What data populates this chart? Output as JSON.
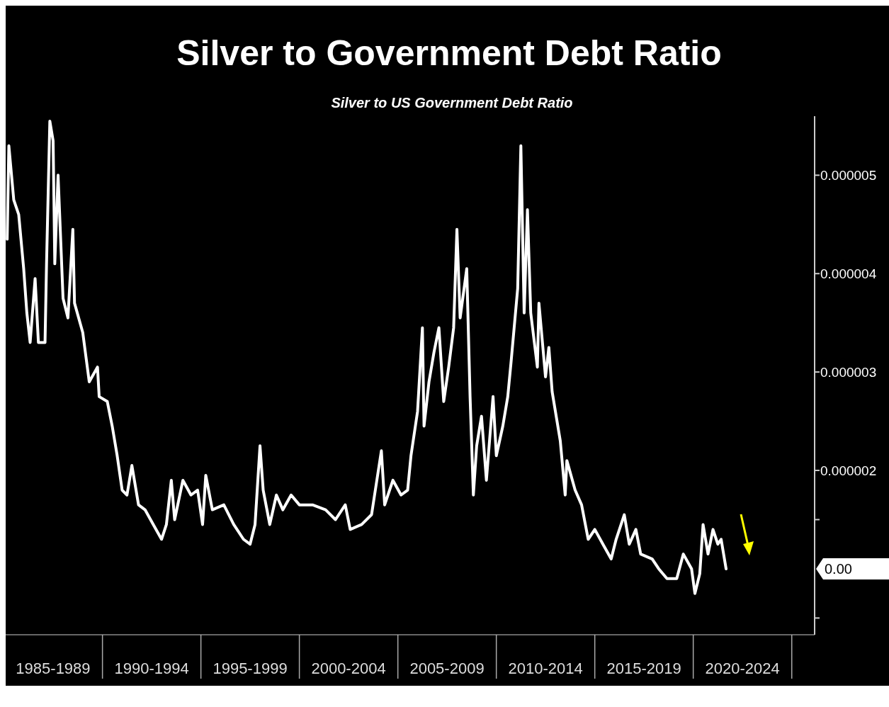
{
  "chart_data": {
    "type": "line",
    "title": "Silver to Government Debt Ratio",
    "subtitle": "Silver to US Government Debt Ratio",
    "x": [
      "1985-03",
      "1985-04",
      "1985-07",
      "1985-10",
      "1986-01",
      "1986-03",
      "1986-05",
      "1986-08",
      "1986-10",
      "1987-02",
      "1987-03",
      "1987-05",
      "1987-07",
      "1987-08",
      "1987-10",
      "1988-01",
      "1988-04",
      "1988-07",
      "1988-08",
      "1989-01",
      "1989-05",
      "1989-10",
      "1989-11",
      "1990-04",
      "1990-07",
      "1990-10",
      "1991-01",
      "1991-04",
      "1991-07",
      "1991-11",
      "1992-03",
      "1992-08",
      "1993-01",
      "1993-04",
      "1993-07",
      "1993-09",
      "1994-02",
      "1994-07",
      "1994-11",
      "1995-02",
      "1995-04",
      "1995-08",
      "1996-03",
      "1996-09",
      "1997-03",
      "1997-07",
      "1997-10",
      "1998-01",
      "1998-03",
      "1998-07",
      "1998-11",
      "1999-03",
      "1999-08",
      "2000-01",
      "2000-09",
      "2001-05",
      "2001-11",
      "2002-05",
      "2002-08",
      "2003-03",
      "2003-09",
      "2004-03",
      "2004-05",
      "2004-10",
      "2005-03",
      "2005-07",
      "2005-09",
      "2006-01",
      "2006-04",
      "2006-05",
      "2006-08",
      "2006-11",
      "2007-02",
      "2007-05",
      "2007-08",
      "2007-11",
      "2008-01",
      "2008-03",
      "2008-07",
      "2008-09",
      "2008-11",
      "2009-01",
      "2009-04",
      "2009-07",
      "2009-11",
      "2010-01",
      "2010-05",
      "2010-08",
      "2010-10",
      "2011-02",
      "2011-04",
      "2011-06",
      "2011-08",
      "2011-10",
      "2012-02",
      "2012-03",
      "2012-07",
      "2012-09",
      "2012-11",
      "2013-04",
      "2013-07",
      "2013-08",
      "2014-01",
      "2014-05",
      "2014-09",
      "2015-01",
      "2015-06",
      "2015-11",
      "2016-02",
      "2016-07",
      "2016-10",
      "2017-02",
      "2017-05",
      "2017-12",
      "2018-04",
      "2018-09",
      "2019-03",
      "2019-07",
      "2019-12",
      "2020-02",
      "2020-05",
      "2020-07",
      "2020-10",
      "2021-01",
      "2021-04",
      "2021-06",
      "2021-09"
    ],
    "series": [
      {
        "color": "#ffffff",
        "values": [
          4.35e-06,
          5.3e-06,
          4.75e-06,
          4.6e-06,
          4.05e-06,
          3.6e-06,
          3.3e-06,
          3.95e-06,
          3.3e-06,
          3.3e-06,
          4.1e-06,
          5.55e-06,
          5.35e-06,
          4.1e-06,
          5e-06,
          3.75e-06,
          3.55e-06,
          4.45e-06,
          3.7e-06,
          3.4e-06,
          2.9e-06,
          3.05e-06,
          2.75e-06,
          2.7e-06,
          2.45e-06,
          2.15e-06,
          1.8e-06,
          1.75e-06,
          2.05e-06,
          1.65e-06,
          1.6e-06,
          1.45e-06,
          1.3e-06,
          1.45e-06,
          1.9e-06,
          1.5e-06,
          1.9e-06,
          1.75e-06,
          1.8e-06,
          1.45e-06,
          1.95e-06,
          1.6e-06,
          1.65e-06,
          1.45e-06,
          1.3e-06,
          1.25e-06,
          1.45e-06,
          2.25e-06,
          1.8e-06,
          1.45e-06,
          1.75e-06,
          1.6e-06,
          1.75e-06,
          1.65e-06,
          1.65e-06,
          1.6e-06,
          1.5e-06,
          1.65e-06,
          1.4e-06,
          1.45e-06,
          1.55e-06,
          2.2e-06,
          1.65e-06,
          1.9e-06,
          1.75e-06,
          1.8e-06,
          2.15e-06,
          2.6e-06,
          3.45e-06,
          2.45e-06,
          2.9e-06,
          3.2e-06,
          3.45e-06,
          2.7e-06,
          3.05e-06,
          3.45e-06,
          4.45e-06,
          3.55e-06,
          4.05e-06,
          2.75e-06,
          1.75e-06,
          2.25e-06,
          2.55e-06,
          1.9e-06,
          2.75e-06,
          2.15e-06,
          2.45e-06,
          2.75e-06,
          3.1e-06,
          3.85e-06,
          5.3e-06,
          3.6e-06,
          4.65e-06,
          3.6e-06,
          3.05e-06,
          3.7e-06,
          2.95e-06,
          3.25e-06,
          2.8e-06,
          2.3e-06,
          1.75e-06,
          2.1e-06,
          1.8e-06,
          1.65e-06,
          1.3e-06,
          1.4e-06,
          1.25e-06,
          1.1e-06,
          1.3e-06,
          1.55e-06,
          1.25e-06,
          1.4e-06,
          1.15e-06,
          1.1e-06,
          1e-06,
          9e-07,
          9e-07,
          1.15e-06,
          1e-06,
          7.5e-07,
          9.5e-07,
          1.45e-06,
          1.15e-06,
          1.4e-06,
          1.25e-06,
          1.3e-06,
          1e-06
        ]
      }
    ],
    "xlim": [
      "1985-02",
      "2026-03"
    ],
    "xticks": [
      {
        "value": "1987-07",
        "label": "1985-1989"
      },
      {
        "value": "1990-01",
        "label": null
      },
      {
        "value": "1992-07",
        "label": "1990-1994"
      },
      {
        "value": "1995-01",
        "label": null
      },
      {
        "value": "1997-07",
        "label": "1995-1999"
      },
      {
        "value": "2000-01",
        "label": null
      },
      {
        "value": "2002-07",
        "label": "2000-2004"
      },
      {
        "value": "2005-01",
        "label": null
      },
      {
        "value": "2007-07",
        "label": "2005-2009"
      },
      {
        "value": "2010-01",
        "label": null
      },
      {
        "value": "2012-07",
        "label": "2010-2014"
      },
      {
        "value": "2015-01",
        "label": null
      },
      {
        "value": "2017-07",
        "label": "2015-2019"
      },
      {
        "value": "2020-01",
        "label": null
      },
      {
        "value": "2022-07",
        "label": "2020-2024"
      },
      {
        "value": "2025-01",
        "label": null
      }
    ],
    "ylim": [
      3.3e-07,
      5.6e-06
    ],
    "yticks": [
      {
        "value": 5e-07,
        "label": null
      },
      {
        "value": 1.5e-06,
        "label": null
      },
      {
        "value": 2e-06,
        "label": "0.000002"
      },
      {
        "value": 3e-06,
        "label": "0.000003"
      },
      {
        "value": 4e-06,
        "label": "0.000004"
      },
      {
        "value": 5e-06,
        "label": "0.000005"
      }
    ],
    "annotations": [
      "0.00"
    ],
    "grid": false,
    "marker": "none",
    "line_style": "solid"
  }
}
